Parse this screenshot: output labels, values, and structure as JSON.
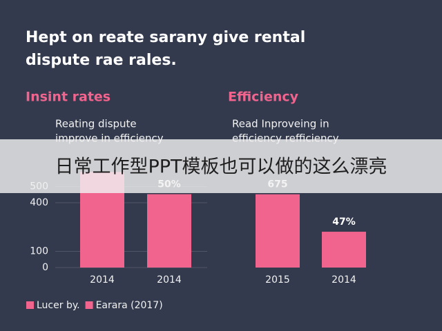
{
  "title": [
    "Hept on reate sarany give rental",
    "dispute rae rales."
  ],
  "banner": "日常工作型PPT模板也可以做的这么漂亮",
  "legend": [
    {
      "name": "Lucer by.",
      "color": "#f0648e"
    },
    {
      "name": "Earara (2017)",
      "color": "#f0648e"
    }
  ],
  "chart_data": [
    {
      "type": "bar",
      "title": "Insint rates",
      "subtitle": [
        "Reating dispute",
        "improve in efficiency"
      ],
      "categories": [
        "2014",
        "2014"
      ],
      "values": [
        590,
        453
      ],
      "annotations": [
        null,
        "50%"
      ],
      "color": "#f0648e",
      "ylim": [
        0,
        630
      ],
      "yticks": [
        0,
        100,
        400,
        500
      ],
      "grid": true
    },
    {
      "type": "bar",
      "title": "Efficiency",
      "subtitle": [
        "Read Inproveing in",
        "efficiency refficiency"
      ],
      "categories": [
        "2015",
        "2014"
      ],
      "values": [
        675,
        330
      ],
      "annotations": [
        "675",
        "47%"
      ],
      "color": "#f0648e",
      "ylim": [
        0,
        940
      ],
      "grid": false
    }
  ]
}
